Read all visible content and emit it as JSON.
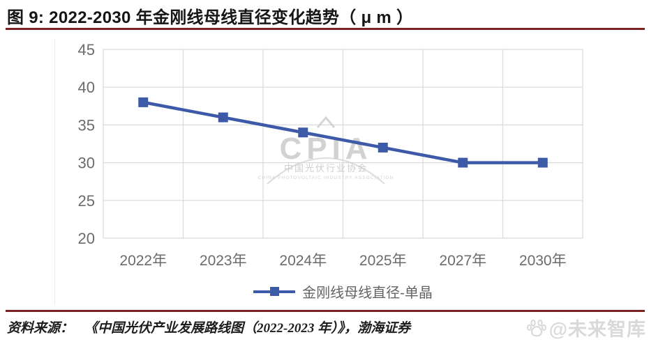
{
  "page": {
    "title": "图 9:  2022-2030 年金刚线母线直径变化趋势（ μ m ）",
    "accent_color": "#7b2322",
    "source_label": "资料来源：",
    "source_text": "《中国光伏产业发展路线图（2022-2023 年）》，渤海证券",
    "watermark_bottom_right": "@未来智库"
  },
  "chart_data": {
    "type": "line",
    "title": "2022-2030 年金刚线母线直径变化趋势（μm）",
    "categories": [
      "2022年",
      "2023年",
      "2024年",
      "2025年",
      "2027年",
      "2030年"
    ],
    "series": [
      {
        "name": "金刚线母线直径-单晶",
        "values": [
          38,
          36,
          34,
          32,
          30,
          30
        ],
        "color": "#3d5aa8",
        "marker": "square"
      }
    ],
    "xlabel": "",
    "ylabel": "",
    "ylim": [
      20,
      45
    ],
    "yticks": [
      20,
      25,
      30,
      35,
      40,
      45
    ],
    "grid": true,
    "grid_color": "#d9d9d9",
    "axis_label_color": "#6b6b6b",
    "legend_position": "bottom",
    "watermark": {
      "main": "CPIA",
      "cn": "中国光伏行业协会",
      "en": "CHINA PHOTOVOLTAIC INDUSTRY ASSOCIATION"
    }
  }
}
